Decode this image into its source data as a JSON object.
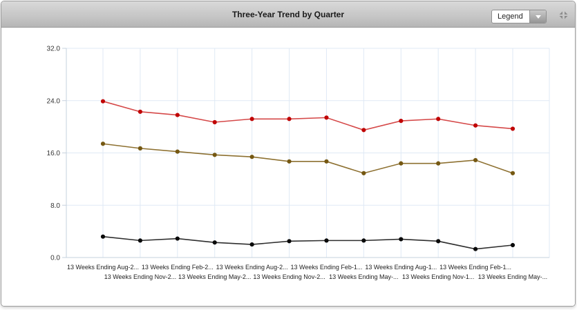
{
  "header": {
    "title": "Three-Year Trend by Quarter",
    "legend_button": {
      "label": "Legend"
    }
  },
  "chart_data": {
    "type": "line",
    "title": "Three-Year Trend by Quarter",
    "x_labels": [
      "13 Weeks Ending Aug-2...",
      "13 Weeks Ending Nov-2...",
      "13 Weeks Ending Feb-2...",
      "13 Weeks Ending May-2...",
      "13 Weeks Ending Aug-2...",
      "13 Weeks Ending Nov-2...",
      "13 Weeks Ending Feb-1...",
      "13 Weeks Ending May-...",
      "13 Weeks Ending Aug-1...",
      "13 Weeks Ending Nov-1...",
      "13 Weeks Ending Feb-1...",
      "13 Weeks Ending May-..."
    ],
    "y_ticks": [
      "32.0",
      "24.0",
      "16.0",
      "8.0",
      "0.0"
    ],
    "ylim": [
      0,
      32
    ],
    "grid": true,
    "legend_position": "collapsed-dropdown",
    "series": [
      {
        "id": "red-series",
        "marker_color": "#c00505",
        "line_color": "#d54848",
        "values": [
          23.9,
          22.3,
          21.8,
          20.7,
          21.2,
          21.2,
          21.4,
          19.5,
          20.9,
          21.2,
          20.2,
          19.7
        ]
      },
      {
        "id": "olive-series",
        "marker_color": "#755812",
        "line_color": "#8d7030",
        "values": [
          17.4,
          16.7,
          16.2,
          15.7,
          15.4,
          14.7,
          14.7,
          12.9,
          14.4,
          14.4,
          14.9,
          12.9
        ]
      },
      {
        "id": "black-series",
        "marker_color": "#0a0a0a",
        "line_color": "#2e2e2e",
        "values": [
          3.2,
          2.6,
          2.9,
          2.3,
          2.0,
          2.5,
          2.6,
          2.6,
          2.8,
          2.5,
          1.3,
          1.9
        ]
      }
    ],
    "colors": {
      "gridline": "#dfe9f5",
      "axis": "#c6d1dd",
      "tick_label": "#333333"
    }
  }
}
